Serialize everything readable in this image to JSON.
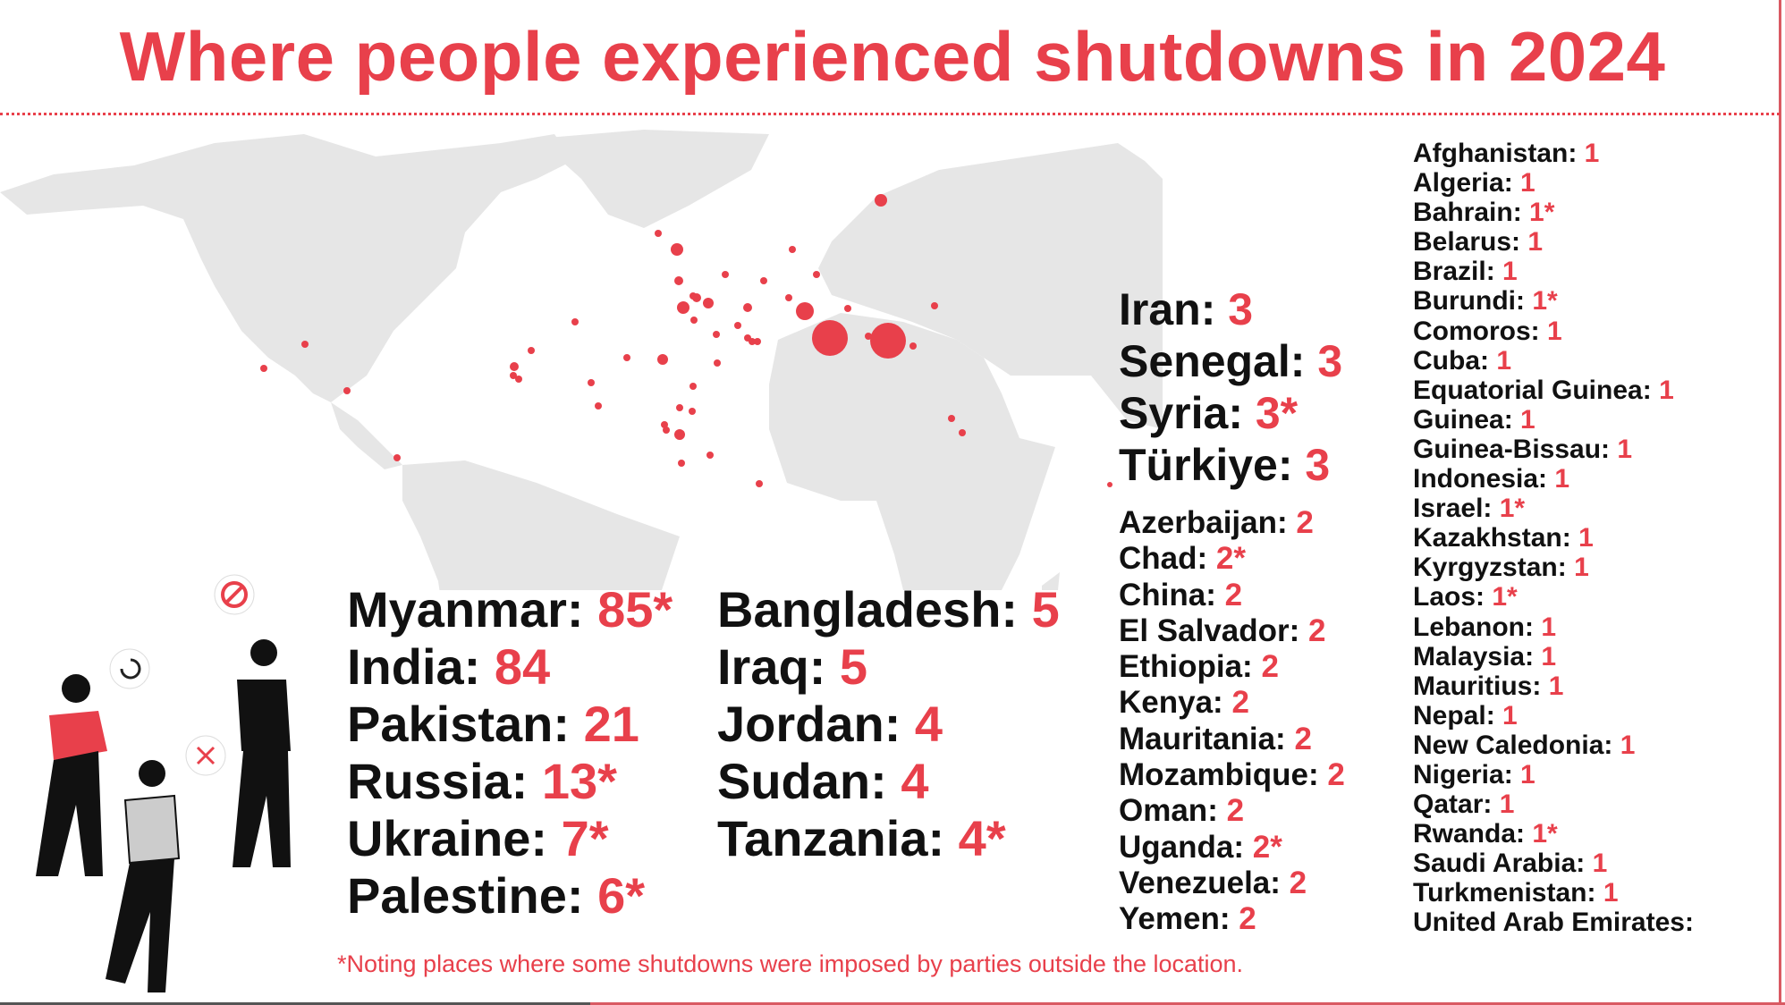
{
  "title": "Where people experienced shutdowns in 2024",
  "colors": {
    "accent": "#e8404b",
    "land": "#e6e6e6",
    "text": "#111111"
  },
  "col1": [
    {
      "name": "Myanmar:",
      "value": "85*"
    },
    {
      "name": "India:",
      "value": "84"
    },
    {
      "name": "Pakistan:",
      "value": "21"
    },
    {
      "name": "Russia:",
      "value": "13*"
    },
    {
      "name": "Ukraine:",
      "value": "7*"
    },
    {
      "name": "Palestine:",
      "value": "6*"
    }
  ],
  "col2": [
    {
      "name": "Bangladesh:",
      "value": "5"
    },
    {
      "name": "Iraq:",
      "value": "5"
    },
    {
      "name": "Jordan:",
      "value": "4"
    },
    {
      "name": "Sudan:",
      "value": "4"
    },
    {
      "name": "Tanzania:",
      "value": "4*"
    }
  ],
  "col3": [
    {
      "name": "Iran:",
      "value": "3"
    },
    {
      "name": "Senegal:",
      "value": "3"
    },
    {
      "name": "Syria:",
      "value": "3*"
    },
    {
      "name": "Türkiye:",
      "value": "3"
    }
  ],
  "col4": [
    {
      "name": "Azerbaijan:",
      "value": "2"
    },
    {
      "name": "Chad:",
      "value": "2*"
    },
    {
      "name": "China:",
      "value": "2"
    },
    {
      "name": "El Salvador:",
      "value": "2"
    },
    {
      "name": "Ethiopia:",
      "value": "2"
    },
    {
      "name": "Kenya:",
      "value": "2"
    },
    {
      "name": "Mauritania:",
      "value": "2"
    },
    {
      "name": "Mozambique:",
      "value": "2"
    },
    {
      "name": "Oman:",
      "value": "2"
    },
    {
      "name": "Uganda:",
      "value": "2*"
    },
    {
      "name": "Venezuela:",
      "value": "2"
    },
    {
      "name": "Yemen:",
      "value": "2"
    }
  ],
  "col5": [
    {
      "name": "Afghanistan:",
      "value": "1"
    },
    {
      "name": "Algeria:",
      "value": "1"
    },
    {
      "name": "Bahrain:",
      "value": "1*"
    },
    {
      "name": "Belarus:",
      "value": "1"
    },
    {
      "name": "Brazil:",
      "value": "1"
    },
    {
      "name": "Burundi:",
      "value": "1*"
    },
    {
      "name": "Comoros:",
      "value": "1"
    },
    {
      "name": "Cuba:",
      "value": "1"
    },
    {
      "name": "Equatorial Guinea:",
      "value": "1"
    },
    {
      "name": "Guinea:",
      "value": "1"
    },
    {
      "name": "Guinea-Bissau:",
      "value": "1"
    },
    {
      "name": "Indonesia:",
      "value": "1"
    },
    {
      "name": "Israel:",
      "value": "1*"
    },
    {
      "name": "Kazakhstan:",
      "value": "1"
    },
    {
      "name": "Kyrgyzstan:",
      "value": "1"
    },
    {
      "name": "Laos:",
      "value": "1*"
    },
    {
      "name": "Lebanon:",
      "value": "1"
    },
    {
      "name": "Malaysia:",
      "value": "1"
    },
    {
      "name": "Mauritius:",
      "value": "1"
    },
    {
      "name": "Nepal:",
      "value": "1"
    },
    {
      "name": "New Caledonia:",
      "value": "1"
    },
    {
      "name": "Nigeria:",
      "value": "1"
    },
    {
      "name": "Qatar:",
      "value": "1"
    },
    {
      "name": "Rwanda:",
      "value": "1*"
    },
    {
      "name": "Saudi Arabia:",
      "value": "1"
    },
    {
      "name": "Turkmenistan:",
      "value": "1"
    },
    {
      "name": "United Arab Emirates:",
      "value": ""
    }
  ],
  "footnote": "*Noting places where some shutdowns were imposed by parties outside the location."
}
